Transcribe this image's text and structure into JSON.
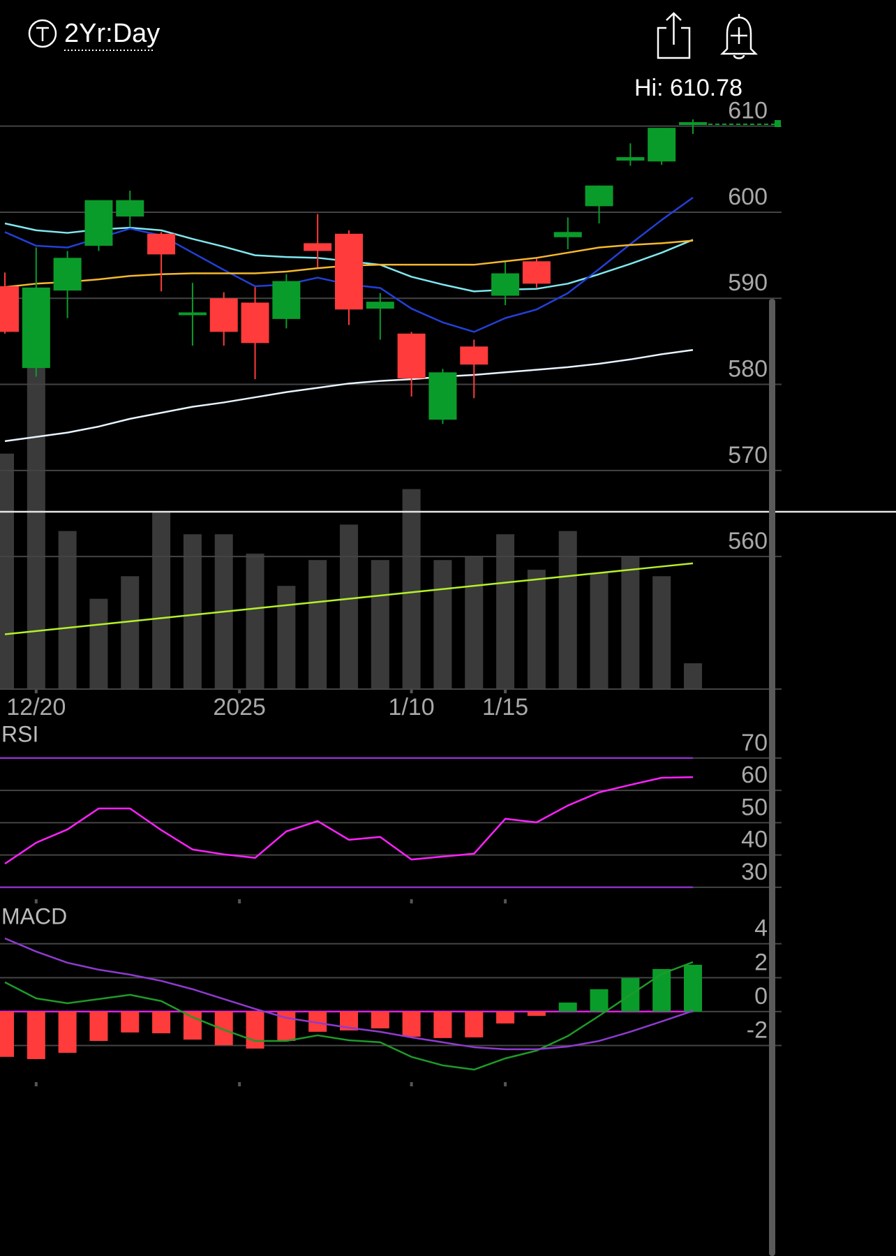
{
  "chart_data": [
    {
      "type": "candlestick",
      "title": "2Yr:Day",
      "annotation": "Hi: 610.78",
      "open": [
        591.4,
        581.9,
        590.9,
        596.1,
        599.5,
        597.5,
        587.9,
        590.0,
        589.5,
        587.6,
        596.4,
        597.5,
        588.8,
        585.9,
        575.9,
        584.4,
        590.3,
        594.3,
        597.1,
        600.7,
        606.0,
        605.9,
        610.0
      ],
      "high": [
        593.0,
        595.9,
        595.5,
        601.4,
        602.5,
        597.7,
        591.8,
        590.7,
        591.3,
        592.8,
        599.8,
        597.9,
        590.6,
        586.1,
        581.8,
        585.2,
        594.2,
        594.6,
        599.4,
        603.1,
        608.0,
        609.8,
        610.78
      ],
      "low": [
        585.9,
        580.9,
        587.7,
        595.5,
        598.3,
        590.8,
        584.5,
        584.5,
        580.6,
        586.5,
        593.6,
        586.9,
        585.2,
        578.6,
        575.4,
        578.4,
        589.2,
        591.25,
        595.7,
        598.7,
        605.4,
        605.5,
        609.1
      ],
      "close": [
        586.1,
        591.25,
        594.7,
        601.4,
        601.4,
        595.1,
        588.2,
        586.1,
        584.8,
        592.0,
        595.5,
        588.7,
        589.6,
        580.7,
        581.4,
        582.3,
        592.9,
        591.7,
        597.7,
        603.1,
        606.4,
        609.8,
        610.3
      ],
      "up_color": "#0a9c2a",
      "down_color": "#ff3b3b",
      "series": [
        {
          "color": "#80e8f0",
          "values": [
            598.7,
            597.9,
            597.6,
            598.0,
            598.2,
            597.9,
            596.9,
            596.0,
            595.0,
            594.8,
            594.7,
            594.3,
            593.9,
            592.5,
            591.6,
            590.8,
            591.0,
            591.1,
            591.7,
            592.8,
            594.0,
            595.3,
            596.8
          ]
        },
        {
          "color": "#2340d8",
          "values": [
            597.7,
            596.1,
            595.9,
            597.0,
            598.1,
            597.3,
            595.3,
            593.3,
            591.4,
            591.6,
            592.4,
            591.6,
            591.2,
            588.8,
            587.2,
            586.1,
            587.7,
            588.7,
            590.6,
            593.4,
            596.3,
            599.1,
            601.7
          ]
        },
        {
          "color": "#f5b82e",
          "values": [
            591.3,
            591.7,
            591.9,
            592.2,
            592.6,
            592.8,
            592.9,
            592.9,
            592.9,
            593.1,
            593.5,
            593.8,
            593.9,
            593.9,
            593.9,
            593.9,
            594.3,
            594.7,
            595.3,
            595.9,
            596.2,
            596.4,
            596.7
          ]
        },
        {
          "color": "#e8f4ff",
          "values": [
            573.4,
            573.9,
            574.4,
            575.1,
            576.0,
            576.7,
            577.4,
            577.9,
            578.5,
            579.1,
            579.6,
            580.1,
            580.4,
            580.6,
            580.9,
            581.1,
            581.4,
            581.7,
            582.0,
            582.4,
            582.9,
            583.5,
            584.0
          ]
        }
      ],
      "volume": {
        "color": "#3a3a3a",
        "values": [
          73,
          100,
          49,
          28,
          35,
          55,
          48,
          48,
          42,
          32,
          40,
          51,
          40,
          62,
          40,
          41,
          48,
          37,
          49,
          36,
          41,
          35,
          8
        ]
      },
      "volume_ma": {
        "color": "#b5f02a",
        "values": [
          17,
          18,
          19,
          20,
          21,
          22,
          23,
          24,
          25,
          26,
          27,
          28,
          29,
          30,
          31,
          32,
          33,
          34,
          35,
          36,
          37,
          38,
          39
        ]
      },
      "xlim": [
        0,
        22
      ],
      "xticks": [
        {
          "value": 1,
          "label": "12/20"
        },
        {
          "value": 7.5,
          "label": "2025"
        },
        {
          "value": 13,
          "label": "1/10"
        },
        {
          "value": 16,
          "label": "1/15"
        }
      ],
      "ylim": [
        544.6,
        613.3
      ],
      "yticks": [
        560,
        570,
        580,
        590,
        600,
        610
      ],
      "grid": true
    },
    {
      "type": "line",
      "title": "RSI",
      "series": [
        {
          "color": "#ff22ff",
          "values": [
            37.3,
            43.8,
            47.9,
            54.4,
            54.4,
            47.7,
            41.7,
            40.2,
            39.1,
            47.3,
            50.5,
            44.7,
            45.6,
            38.6,
            39.5,
            40.4,
            51.2,
            50.1,
            55.3,
            59.4,
            61.7,
            63.9,
            64.1
          ]
        }
      ],
      "bands": {
        "color": "#8e2fc6",
        "values": [
          30,
          70
        ]
      },
      "ylim": [
        26.3,
        79.9
      ],
      "yticks": [
        30,
        40,
        50,
        60,
        70
      ],
      "grid": true
    },
    {
      "type": "macd",
      "title": "MACD",
      "histogram": {
        "up_color": "#0a9c2a",
        "down_color": "#ff3b3b",
        "values": [
          -2.67,
          -2.8,
          -2.43,
          -1.73,
          -1.23,
          -1.28,
          -1.65,
          -1.98,
          -2.18,
          -1.73,
          -1.19,
          -1.11,
          -0.99,
          -1.48,
          -1.56,
          -1.52,
          -0.7,
          -0.25,
          0.53,
          1.32,
          1.98,
          2.51,
          2.76
        ]
      },
      "series": [
        {
          "color": "#1f9a2a",
          "values": [
            1.73,
            0.78,
            0.49,
            0.74,
            0.99,
            0.62,
            -0.33,
            -1.07,
            -1.73,
            -1.73,
            -1.4,
            -1.69,
            -1.81,
            -2.67,
            -3.17,
            -3.42,
            -2.76,
            -2.3,
            -1.44,
            -0.25,
            0.99,
            2.22,
            2.92
          ]
        },
        {
          "color": "#8e3bd0",
          "values": [
            4.32,
            3.54,
            2.88,
            2.47,
            2.18,
            1.81,
            1.32,
            0.74,
            0.16,
            -0.37,
            -0.66,
            -0.95,
            -1.19,
            -1.52,
            -1.81,
            -2.1,
            -2.22,
            -2.22,
            -2.06,
            -1.73,
            -1.19,
            -0.58,
            0.04
          ]
        }
      ],
      "zero_line_color": "#e020e0",
      "ylim": [
        -4.16,
        6.13
      ],
      "yticks": [
        -2,
        0,
        2,
        4
      ],
      "grid": true
    }
  ]
}
